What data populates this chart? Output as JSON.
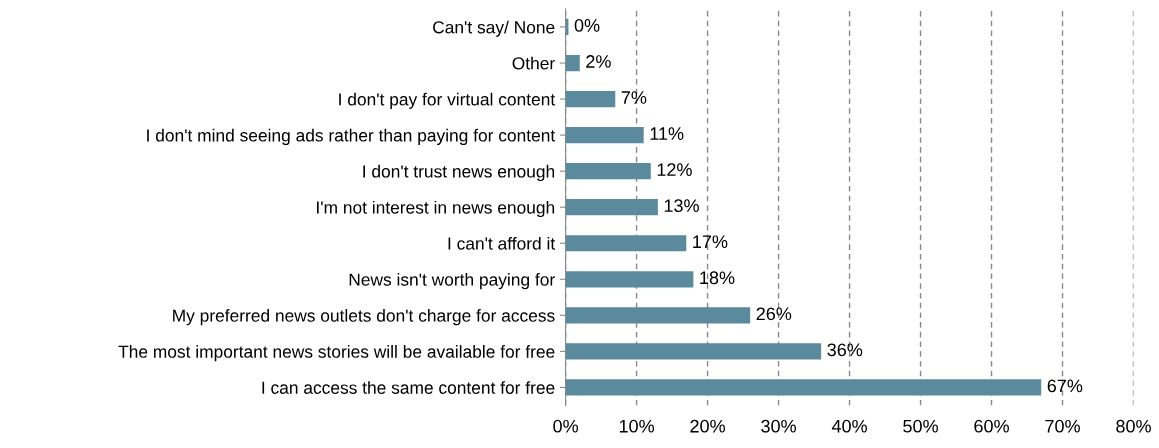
{
  "chart_data": {
    "type": "bar",
    "orientation": "horizontal",
    "categories": [
      "Can't say/ None",
      "Other",
      "I don't pay for virtual content",
      "I don't mind seeing ads rather than paying for content",
      "I don't trust news enough",
      "I'm not interest in news enough",
      "I can't afford it",
      "News isn't worth paying for",
      "My preferred news outlets don't charge for access",
      "The most important news stories will be available for free",
      "I can access the same content for free"
    ],
    "values": [
      0.4,
      2,
      7,
      11,
      12,
      13,
      17,
      18,
      26,
      36,
      67
    ],
    "value_labels": [
      "0%",
      "2%",
      "7%",
      "11%",
      "12%",
      "13%",
      "17%",
      "18%",
      "26%",
      "36%",
      "67%"
    ],
    "color": "#5b8a9c",
    "xlim": [
      0,
      80
    ],
    "xticks": [
      {
        "value": 0,
        "label": "0%"
      },
      {
        "value": 10,
        "label": "10%"
      },
      {
        "value": 20,
        "label": "20%"
      },
      {
        "value": 30,
        "label": "30%"
      },
      {
        "value": 40,
        "label": "40%"
      },
      {
        "value": 50,
        "label": "50%"
      },
      {
        "value": 60,
        "label": "60%"
      },
      {
        "value": 70,
        "label": "70%"
      },
      {
        "value": 80,
        "label": "80%"
      }
    ],
    "grid": "x"
  }
}
